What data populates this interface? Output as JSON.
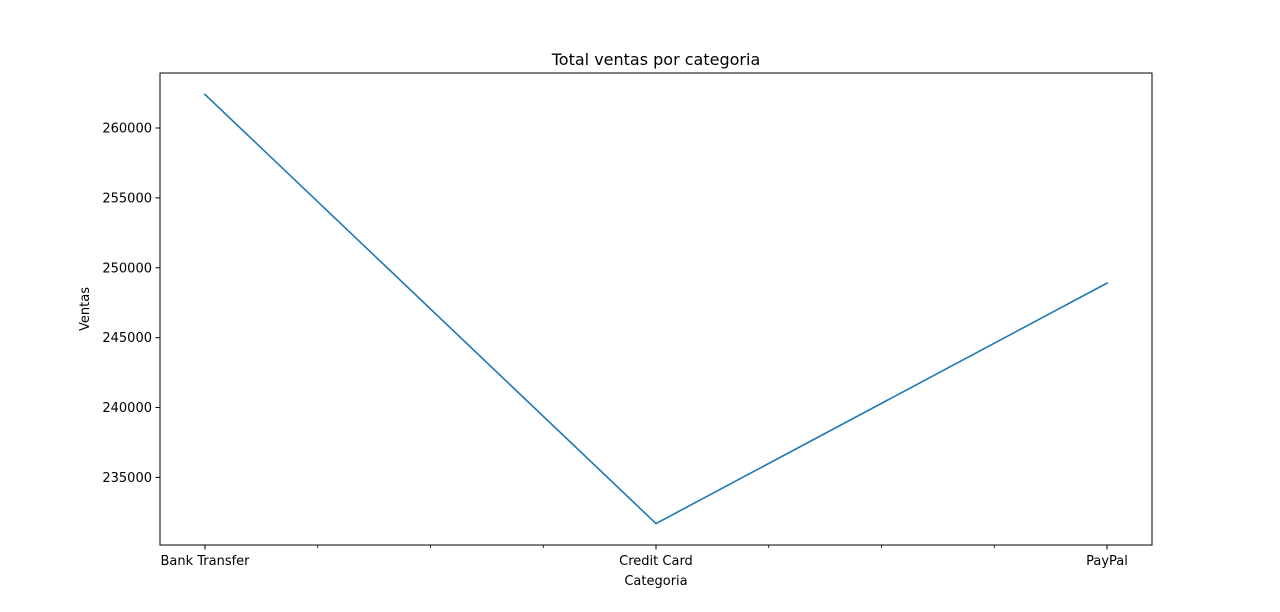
{
  "chart_data": {
    "type": "line",
    "title": "Total ventas por categoria",
    "xlabel": "Categoria",
    "ylabel": "Ventas",
    "categories": [
      "Bank Transfer",
      "Credit Card",
      "PayPal"
    ],
    "series": [
      {
        "values": [
          262400,
          231700,
          248900
        ],
        "color": "#1f77b4"
      }
    ],
    "yticks": [
      235000,
      240000,
      245000,
      250000,
      255000,
      260000
    ],
    "ytick_labels": [
      "235000",
      "240000",
      "245000",
      "250000",
      "255000",
      "260000"
    ],
    "ylim": [
      230165,
      263935
    ],
    "minor_xticks": true,
    "grid": false,
    "legend": false
  }
}
